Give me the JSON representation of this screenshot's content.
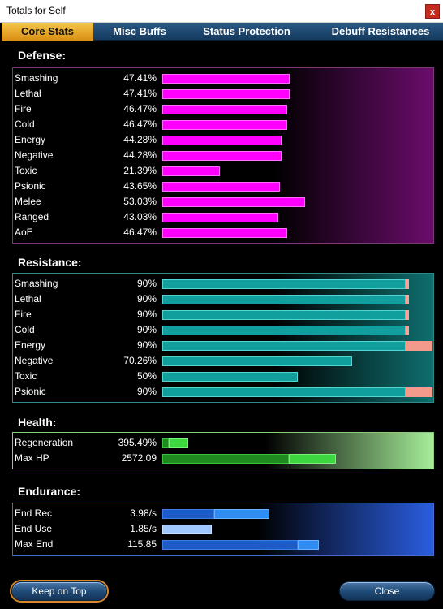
{
  "window": {
    "title": "Totals for Self",
    "close_glyph": "x"
  },
  "tabs": [
    {
      "label": "Core Stats",
      "active": true
    },
    {
      "label": "Misc Buffs",
      "active": false
    },
    {
      "label": "Status Protection",
      "active": false
    },
    {
      "label": "Debuff Resistances",
      "active": false
    }
  ],
  "defense": {
    "title": "Defense:",
    "rows": [
      {
        "label": "Smashing",
        "value": "47.41%",
        "pct": 47.41
      },
      {
        "label": "Lethal",
        "value": "47.41%",
        "pct": 47.41
      },
      {
        "label": "Fire",
        "value": "46.47%",
        "pct": 46.47
      },
      {
        "label": "Cold",
        "value": "46.47%",
        "pct": 46.47
      },
      {
        "label": "Energy",
        "value": "44.28%",
        "pct": 44.28
      },
      {
        "label": "Negative",
        "value": "44.28%",
        "pct": 44.28
      },
      {
        "label": "Toxic",
        "value": "21.39%",
        "pct": 21.39
      },
      {
        "label": "Psionic",
        "value": "43.65%",
        "pct": 43.65
      },
      {
        "label": "Melee",
        "value": "53.03%",
        "pct": 53.03
      },
      {
        "label": "Ranged",
        "value": "43.03%",
        "pct": 43.03
      },
      {
        "label": "AoE",
        "value": "46.47%",
        "pct": 46.47
      }
    ]
  },
  "resistance": {
    "title": "Resistance:",
    "rows": [
      {
        "label": "Smashing",
        "value": "90%",
        "pct": 90
      },
      {
        "label": "Lethal",
        "value": "90%",
        "pct": 90
      },
      {
        "label": "Fire",
        "value": "90%",
        "pct": 90
      },
      {
        "label": "Cold",
        "value": "90%",
        "pct": 90
      },
      {
        "label": "Energy",
        "value": "90%",
        "pct": 90
      },
      {
        "label": "Negative",
        "value": "70.26%",
        "pct": 70.26
      },
      {
        "label": "Toxic",
        "value": "50%",
        "pct": 50
      },
      {
        "label": "Psionic",
        "value": "90%",
        "pct": 90
      }
    ]
  },
  "health": {
    "title": "Health:",
    "rows": [
      {
        "label": "Regeneration",
        "value": "395.49%"
      },
      {
        "label": "Max HP",
        "value": "2572.09"
      }
    ]
  },
  "endurance": {
    "title": "Endurance:",
    "rows": [
      {
        "label": "End Rec",
        "value": "3.98/s"
      },
      {
        "label": "End Use",
        "value": "1.85/s"
      },
      {
        "label": "Max End",
        "value": "115.85"
      }
    ]
  },
  "buttons": {
    "keep_on_top": "Keep on Top",
    "close": "Close"
  },
  "colors": {
    "defense_bar": "#ff00ff",
    "resistance_bar": "#109f9c",
    "resistance_overcap": "#f39a8c",
    "health_bar": "#3ed63e",
    "endurance_bar": "#2f8cf2",
    "active_tab": "#f4c64a"
  }
}
